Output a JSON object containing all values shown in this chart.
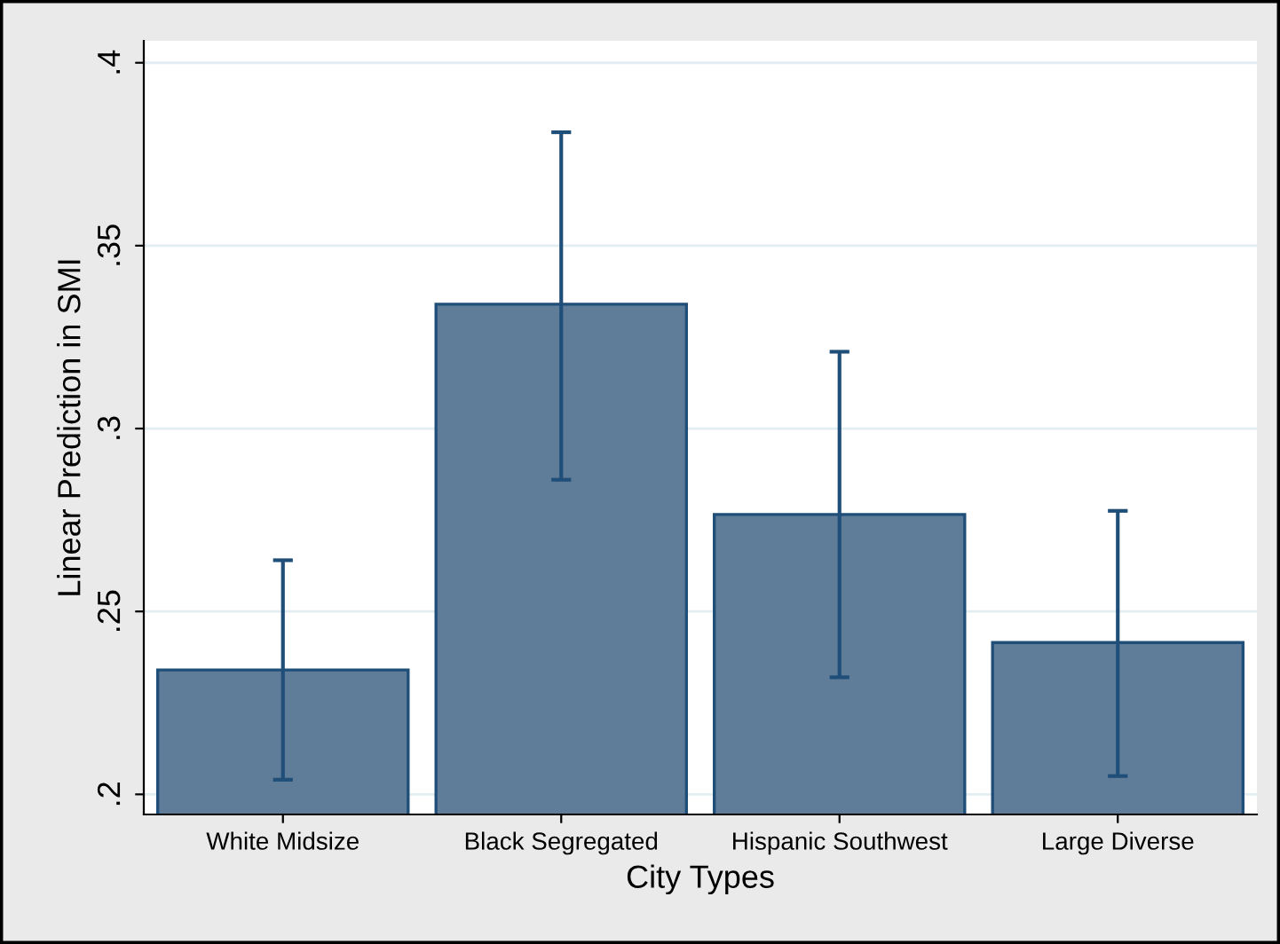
{
  "chart_data": {
    "type": "bar",
    "xlabel": "City Types",
    "ylabel": "Linear Prediction in SMI",
    "categories": [
      "White Midsize",
      "Black Segregated",
      "Hispanic Southwest",
      "Large Diverse"
    ],
    "values": [
      0.234,
      0.334,
      0.2765,
      0.2415
    ],
    "errors": [
      [
        0.204,
        0.264
      ],
      [
        0.286,
        0.381
      ],
      [
        0.232,
        0.321
      ],
      [
        0.205,
        0.2775
      ]
    ],
    "color": "#5f7d99",
    "ylim": [
      0.1945,
      0.406
    ],
    "yticks": [
      {
        "value": 0.2,
        "label": ".2"
      },
      {
        "value": 0.25,
        "label": ".25"
      },
      {
        "value": 0.3,
        "label": ".3"
      },
      {
        "value": 0.35,
        "label": ".35"
      },
      {
        "value": 0.4,
        "label": ".4"
      }
    ],
    "grid": "y"
  }
}
